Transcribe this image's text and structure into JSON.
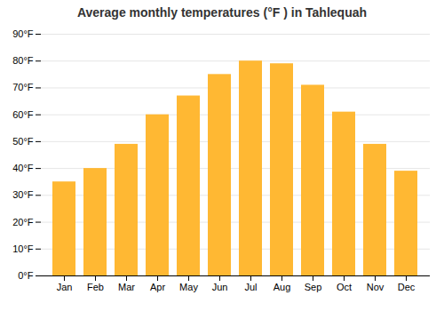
{
  "chart_data": {
    "type": "bar",
    "title": "Average monthly temperatures (°F ) in Tahlequah",
    "categories": [
      "Jan",
      "Feb",
      "Mar",
      "Apr",
      "May",
      "Jun",
      "Jul",
      "Aug",
      "Sep",
      "Oct",
      "Nov",
      "Dec"
    ],
    "values": [
      35,
      40,
      49,
      60,
      67,
      75,
      80,
      79,
      71,
      61,
      49,
      39
    ],
    "color": "#FFB833",
    "ylim": [
      0,
      90
    ],
    "yticks": [
      {
        "value": 0,
        "label": "0°F"
      },
      {
        "value": 10,
        "label": "10°F"
      },
      {
        "value": 20,
        "label": "20°F"
      },
      {
        "value": 30,
        "label": "30°F"
      },
      {
        "value": 40,
        "label": "40°F"
      },
      {
        "value": 50,
        "label": "50°F"
      },
      {
        "value": 60,
        "label": "60°F"
      },
      {
        "value": 70,
        "label": "70°F"
      },
      {
        "value": 80,
        "label": "80°F"
      },
      {
        "value": 90,
        "label": "90°F"
      }
    ],
    "grid": true
  }
}
